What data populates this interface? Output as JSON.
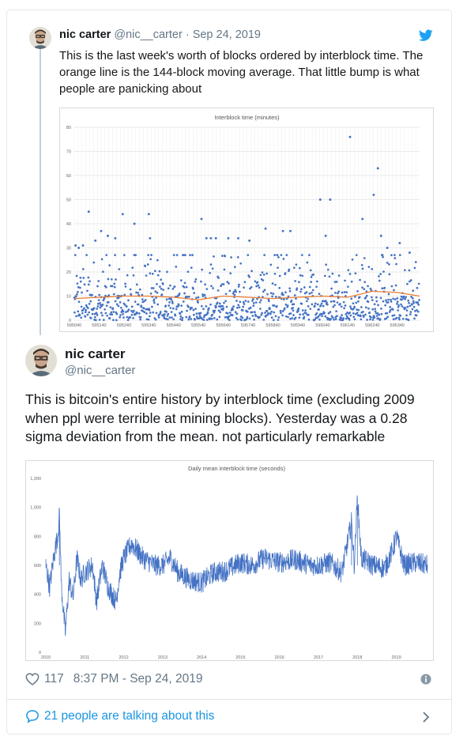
{
  "quoted_tweet": {
    "name": "nic carter",
    "handle": "@nic__carter",
    "separator": "·",
    "date": "Sep 24, 2019",
    "text": "This is the last week's worth of blocks ordered by interblock time. The orange line is the 144-block moving average. That little bump is what people are panicking about"
  },
  "main_tweet": {
    "name": "nic carter",
    "handle": "@nic__carter",
    "text": "This is bitcoin's entire history by interblock time (excluding 2009 when ppl were terrible at mining blocks). Yesterday was a 0.28 sigma deviation from the mean. not particularly remarkable",
    "likes": "117",
    "timestamp": "8:37 PM - Sep 24, 2019",
    "talking": "21 people are talking about this"
  },
  "colors": {
    "twitter_blue": "#1da1f2",
    "link_blue": "#1b95e0",
    "scatter_blue": "#4472c4",
    "ma_orange": "#ed7d31"
  },
  "icons": [
    "twitter-bird-icon",
    "heart-icon",
    "info-icon",
    "speech-bubble-icon",
    "chevron-right-icon"
  ],
  "chart_data": [
    {
      "type": "scatter",
      "title": "Interblock time (minutes)",
      "ylim": [
        0,
        80
      ],
      "y_ticks": [
        "80",
        "70",
        "60",
        "50",
        "40",
        "30",
        "20",
        "10",
        "0"
      ],
      "x_ticks": [
        "595040",
        "595140",
        "595240",
        "595340",
        "595440",
        "595540",
        "595640",
        "595740",
        "595840",
        "595940",
        "596040",
        "596140",
        "596240",
        "596340"
      ],
      "xlim": [
        595040,
        596430
      ],
      "grid": true,
      "point_count": 1008,
      "series": [
        {
          "kind": "points",
          "outliers": [
            [
              595045,
              31
            ],
            [
              595058,
              30
            ],
            [
              595075,
              31
            ],
            [
              595098,
              45
            ],
            [
              595125,
              33
            ],
            [
              595148,
              37
            ],
            [
              595175,
              35
            ],
            [
              595205,
              34
            ],
            [
              595235,
              44
            ],
            [
              595282,
              40
            ],
            [
              595340,
              44
            ],
            [
              595345,
              34
            ],
            [
              595552,
              42
            ],
            [
              595572,
              34
            ],
            [
              595590,
              34
            ],
            [
              595610,
              34
            ],
            [
              595660,
              34
            ],
            [
              595700,
              34
            ],
            [
              595745,
              33
            ],
            [
              595810,
              38
            ],
            [
              595880,
              37
            ],
            [
              595910,
              37
            ],
            [
              596030,
              50
            ],
            [
              596052,
              35
            ],
            [
              596070,
              50
            ],
            [
              596150,
              76
            ],
            [
              596200,
              42
            ],
            [
              596245,
              52
            ],
            [
              596262,
              63
            ],
            [
              596275,
              35
            ],
            [
              596300,
              30
            ],
            [
              596350,
              32
            ],
            [
              596390,
              28
            ]
          ]
        },
        {
          "kind": "moving_average",
          "window": 144,
          "points": [
            [
              595040,
              9
            ],
            [
              595140,
              9.5
            ],
            [
              595240,
              10
            ],
            [
              595340,
              10
            ],
            [
              595440,
              9.5
            ],
            [
              595540,
              8.5
            ],
            [
              595640,
              10
            ],
            [
              595740,
              9.5
            ],
            [
              595840,
              9
            ],
            [
              595940,
              9.5
            ],
            [
              596040,
              10
            ],
            [
              596140,
              9.5
            ],
            [
              596240,
              12
            ],
            [
              596340,
              11.5
            ],
            [
              596430,
              10
            ]
          ]
        }
      ]
    },
    {
      "type": "line",
      "title": "Daily mean interblock time (seconds)",
      "ylim": [
        0,
        1200
      ],
      "y_ticks": [
        "1,200",
        "1,000",
        "800",
        "600",
        "400",
        "200",
        "0"
      ],
      "x_ticks": [
        "2010",
        "2011",
        "2012",
        "2013",
        "2014",
        "2015",
        "2016",
        "2017",
        "2018",
        "2019"
      ],
      "xlim": [
        2010.0,
        2019.8
      ],
      "grid": false,
      "series": [
        {
          "name": "",
          "points": [
            [
              2010.0,
              600
            ],
            [
              2010.1,
              450
            ],
            [
              2010.2,
              650
            ],
            [
              2010.3,
              800
            ],
            [
              2010.35,
              950
            ],
            [
              2010.4,
              450
            ],
            [
              2010.5,
              130
            ],
            [
              2010.6,
              500
            ],
            [
              2010.7,
              380
            ],
            [
              2010.8,
              650
            ],
            [
              2010.9,
              500
            ],
            [
              2011.0,
              550
            ],
            [
              2011.2,
              600
            ],
            [
              2011.3,
              350
            ],
            [
              2011.45,
              600
            ],
            [
              2011.6,
              450
            ],
            [
              2011.8,
              350
            ],
            [
              2011.9,
              550
            ],
            [
              2012.0,
              650
            ],
            [
              2012.2,
              750
            ],
            [
              2012.5,
              650
            ],
            [
              2012.8,
              600
            ],
            [
              2013.0,
              600
            ],
            [
              2013.2,
              650
            ],
            [
              2013.4,
              550
            ],
            [
              2013.7,
              500
            ],
            [
              2014.0,
              480
            ],
            [
              2014.3,
              550
            ],
            [
              2014.6,
              560
            ],
            [
              2015.0,
              620
            ],
            [
              2015.3,
              600
            ],
            [
              2015.6,
              650
            ],
            [
              2016.0,
              620
            ],
            [
              2016.4,
              640
            ],
            [
              2016.8,
              600
            ],
            [
              2017.0,
              600
            ],
            [
              2017.3,
              620
            ],
            [
              2017.6,
              550
            ],
            [
              2017.85,
              900
            ],
            [
              2017.92,
              600
            ],
            [
              2018.0,
              1070
            ],
            [
              2018.1,
              650
            ],
            [
              2018.4,
              600
            ],
            [
              2018.7,
              580
            ],
            [
              2018.9,
              700
            ],
            [
              2019.0,
              800
            ],
            [
              2019.2,
              600
            ],
            [
              2019.5,
              620
            ],
            [
              2019.8,
              600
            ]
          ]
        }
      ]
    }
  ]
}
